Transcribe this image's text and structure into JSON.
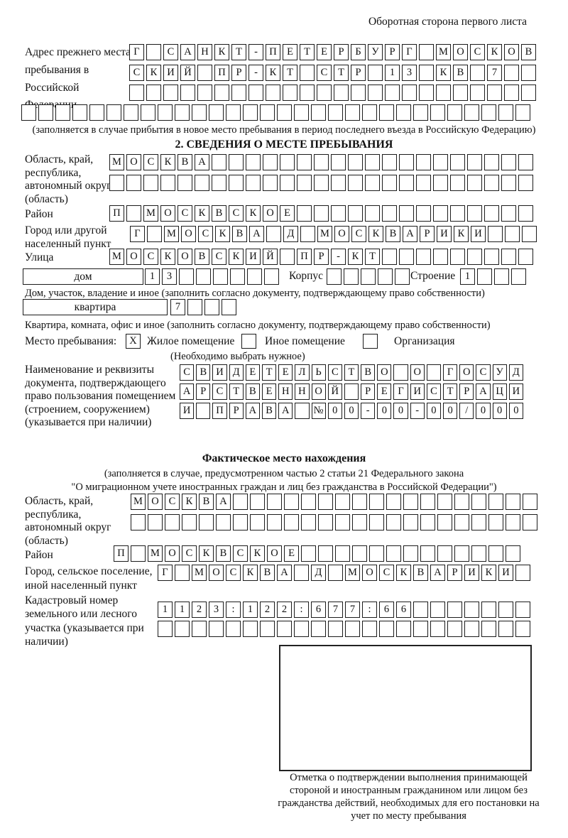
{
  "header": {
    "back_note": "Оборотная сторона первого листа"
  },
  "prev_address": {
    "label": "Адрес прежнего места пребывания в Российской Федерации",
    "row1": "Г САНКТ-ПЕТЕРБУРГ МОСКОВ",
    "row2": "СКИЙ ПР-КТ СТР 13 КВ 7",
    "row3": "",
    "row4": "",
    "note": "(заполняется в случае прибытия в новое место пребывания в период последнего въезда в Российскую Федерацию)"
  },
  "section2": {
    "title": "2. СВЕДЕНИЯ О МЕСТЕ ПРЕБЫВАНИЯ",
    "region_label": "Область, край, республика, автономный округ (область)",
    "region_row1": "МОСКВА",
    "region_row2": "",
    "district_label": "Район",
    "district_row": "П МОСКВСКОЕ",
    "city_label": "Город или другой населенный пункт",
    "city_row": "Г МОСКВА Д МОСКВАРИКИ",
    "street_label": "Улица",
    "street_row": "МОСКОВСКИЙ ПР-КТ",
    "house_label": "дом",
    "house_row": "13",
    "korpus_label": "Корпус",
    "korpus_row": "",
    "stroenie_label": "Строение",
    "stroenie_row": "1",
    "house_note": "Дом, участок, владение и иное (заполнить согласно документу, подтверждающему право собственности)",
    "apartment_label": "квартира",
    "apartment_row": "7",
    "apartment_note": "Квартира, комната, офис и иное (заполнить согласно документу, подтверждающему право собственности)",
    "stay": {
      "label": "Место пребывания:",
      "note": "(Необходимо выбрать нужное)",
      "options": [
        {
          "label": "Жилое помещение",
          "mark": "X"
        },
        {
          "label": "Иное помещение",
          "mark": ""
        },
        {
          "label": "Организация",
          "mark": ""
        }
      ]
    },
    "doc_label": "Наименование и реквизиты документа, подтверждающего право пользования помещением (строением, сооружением) (указывается при наличии)",
    "doc_row1": "СВИДЕТЕЛЬСТВО О ГОСУД",
    "doc_row2": "АРСТВЕННОЙ РЕГИСТРАЦИ",
    "doc_row3": "И ПРАВА №00-00-00/000"
  },
  "actual_location": {
    "title": "Фактическое место нахождения",
    "note1": "(заполняется в случае, предусмотренном частью 2 статьи 21 Федерального закона",
    "note2": "\"О миграционном учете иностранных граждан и лиц без гражданства в Российской Федерации\")",
    "region_label": "Область, край, республика, автономный округ (область)",
    "region_row1": "МОСКВА",
    "region_row2": "",
    "district_label": "Район",
    "district_row": "П МОСКВСКОЕ",
    "city_label": "Город, сельское поселение, иной населенный пункт",
    "city_row": "Г МОСКВА Д МОСКВАРИКИ",
    "cadastral_label": "Кадастровый номер земельного или лесного участка (указывается при наличии)",
    "cadastral_row1": "1123:122:677:66",
    "cadastral_row2": ""
  },
  "confirmation": {
    "note": "Отметка о подтверждении выполнения принимающей стороной и иностранным гражданином или лицом без гражданства действий, необходимых для его постановки на учет по месту пребывания"
  }
}
